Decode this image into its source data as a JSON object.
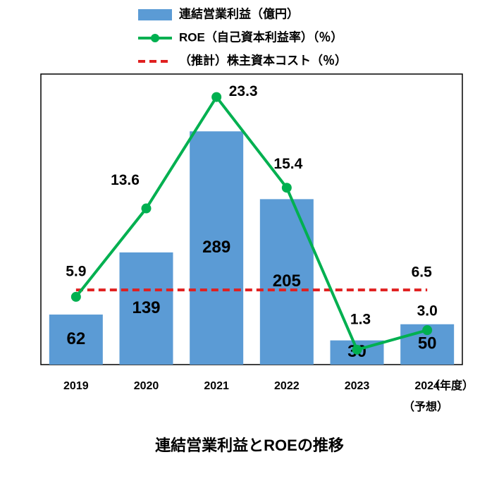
{
  "chart_data": {
    "type": "bar_line",
    "title": "連結営業利益とROEの推移",
    "categories": [
      "2019",
      "2020",
      "2021",
      "2022",
      "2023",
      "2024"
    ],
    "x_label": "（年度）",
    "annotation": "（予想）",
    "ylim": [
      0,
      360
    ],
    "y2lim": [
      0,
      25.3
    ],
    "series": [
      {
        "name": "連結営業利益（億円）",
        "type": "bar",
        "color": "#5b9bd5",
        "values": [
          62,
          139,
          289,
          205,
          30,
          50
        ]
      },
      {
        "name": "ROE（自己資本利益率）（％）",
        "type": "line",
        "axis": "y2",
        "color": "#00b050",
        "values": [
          5.9,
          13.6,
          23.3,
          15.4,
          1.3,
          3.0
        ],
        "value_labels": [
          "5.9",
          "13.6",
          "23.3",
          "15.4",
          "1.3",
          "3.0"
        ]
      }
    ],
    "reference_line": {
      "name": "（推計）株主資本コスト（％）",
      "axis": "y2",
      "color": "#e02020",
      "value": 6.5,
      "value_label": "6.5"
    }
  }
}
